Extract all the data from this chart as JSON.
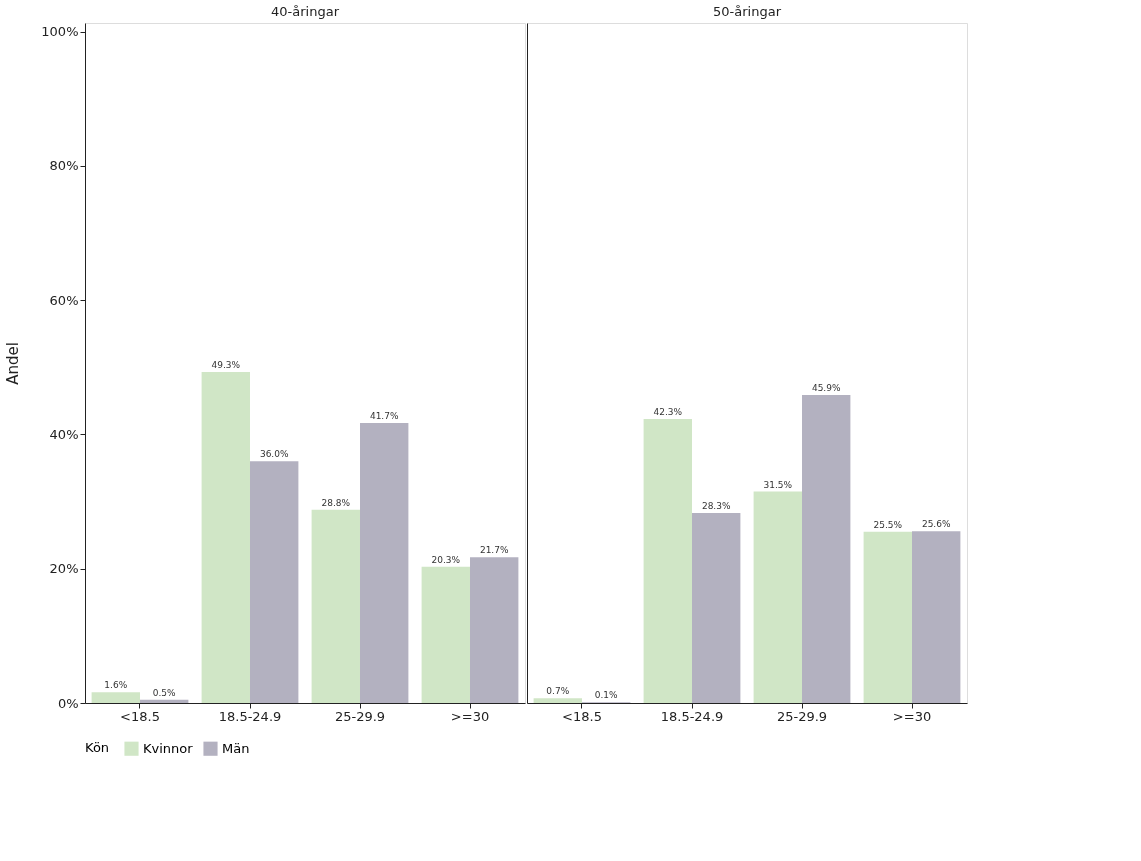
{
  "chart_data": [
    {
      "type": "bar",
      "title": "40-åringar",
      "ylabel": "Andel",
      "legend_title": "Kön",
      "legend": "bottom",
      "grid": false,
      "categories": [
        "<18.5",
        "18.5-24.9",
        "25-29.9",
        ">=30"
      ],
      "ylim": [
        0,
        101.3
      ],
      "yticks": [
        {
          "value": 0,
          "label": "0%"
        },
        {
          "value": 20,
          "label": "20%"
        },
        {
          "value": 40,
          "label": "40%"
        },
        {
          "value": 60,
          "label": "60%"
        },
        {
          "value": 80,
          "label": "80%"
        },
        {
          "value": 100,
          "label": "100%"
        }
      ],
      "series": [
        {
          "name": "Kvinnor",
          "color": "#d0e6c6",
          "values": [
            1.6,
            49.3,
            28.8,
            20.3
          ],
          "value_labels": [
            "1.6%",
            "49.3%",
            "28.8%",
            "20.3%"
          ]
        },
        {
          "name": "Män",
          "color": "#b3b1c0",
          "values": [
            0.5,
            36.0,
            41.7,
            21.7
          ],
          "value_labels": [
            "0.5%",
            "36.0%",
            "41.7%",
            "21.7%"
          ]
        }
      ]
    },
    {
      "type": "bar",
      "title": "50-åringar",
      "grid": false,
      "tick_labels": "x",
      "categories": [
        "<18.5",
        "18.5-24.9",
        "25-29.9",
        ">=30"
      ],
      "ylim": [
        0,
        101.3
      ],
      "series": [
        {
          "color": "#d0e6c6",
          "values": [
            0.7,
            42.3,
            31.5,
            25.5
          ],
          "value_labels": [
            "0.7%",
            "42.3%",
            "31.5%",
            "25.5%"
          ]
        },
        {
          "color": "#b3b1c0",
          "values": [
            0.1,
            28.3,
            45.9,
            25.6
          ],
          "value_labels": [
            "0.1%",
            "28.3%",
            "45.9%",
            "25.6%"
          ]
        }
      ]
    }
  ]
}
